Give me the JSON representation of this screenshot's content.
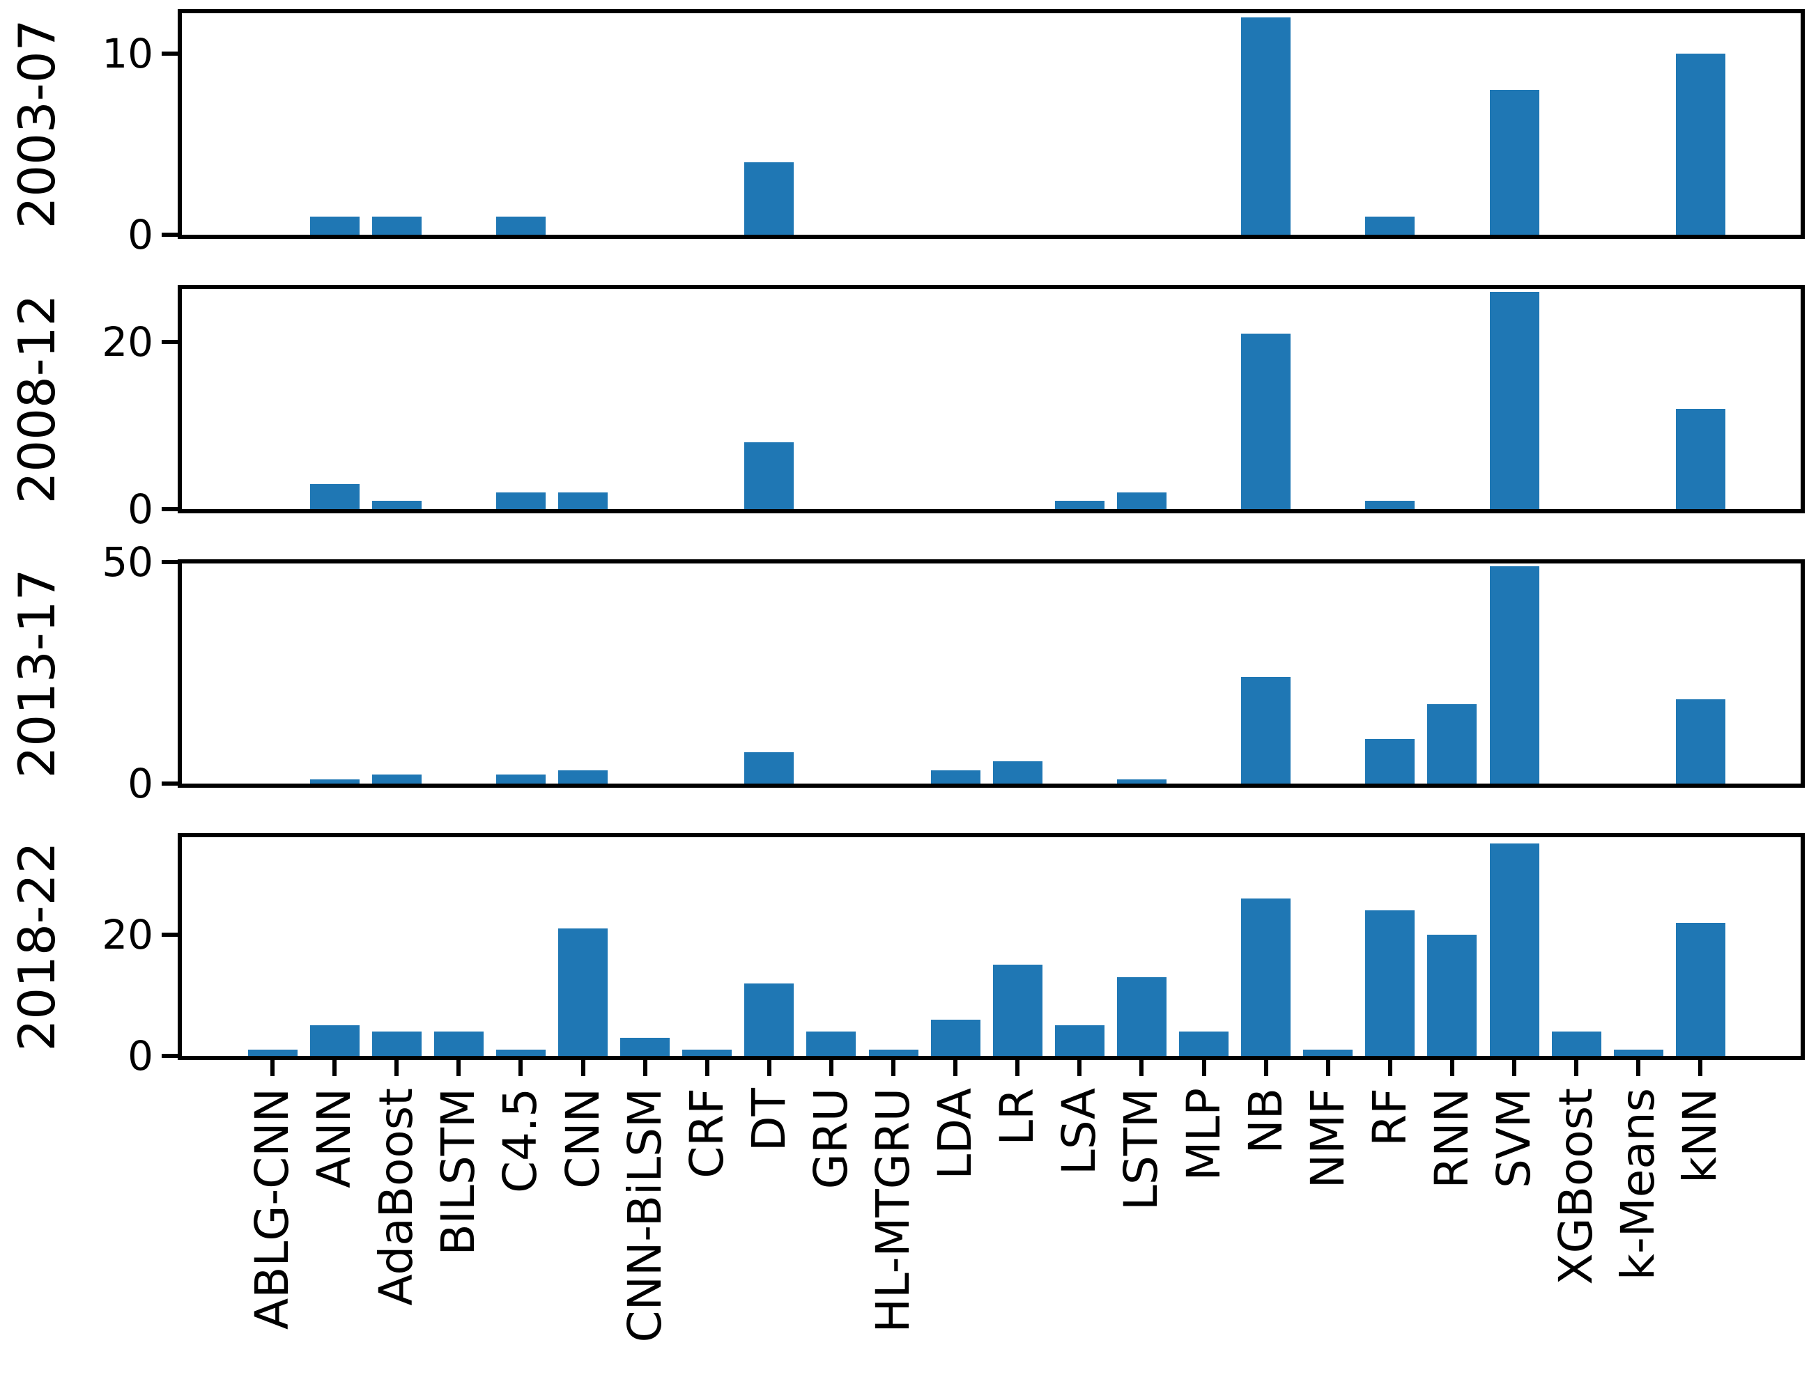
{
  "chart_data": {
    "type": "bar",
    "title": "",
    "xlabel": "",
    "grid": false,
    "legend": "none",
    "background": "#ffffff",
    "bar_color": "#1f77b4",
    "axis_color": "#000000",
    "categories": [
      "ABLG-CNN",
      "ANN",
      "AdaBoost",
      "BILSTM",
      "C4.5",
      "CNN",
      "CNN-BiLSM",
      "CRF",
      "DT",
      "GRU",
      "HL-MTGRU",
      "LDA",
      "LR",
      "LSA",
      "LSTM",
      "MLP",
      "NB",
      "NMF",
      "RF",
      "RNN",
      "SVM",
      "XGBoost",
      "k-Means",
      "kNN"
    ],
    "series": [
      {
        "name": "2003-07",
        "ylim": [
          0,
          12.6
        ],
        "yticks": [
          0,
          10
        ],
        "values": [
          0,
          1,
          1,
          0,
          1,
          0,
          0,
          0,
          4,
          0,
          0,
          0,
          0,
          0,
          0,
          0,
          12,
          0,
          1,
          0,
          8,
          0,
          0,
          10
        ]
      },
      {
        "name": "2008-12",
        "ylim": [
          0,
          27.3
        ],
        "yticks": [
          0,
          20
        ],
        "values": [
          0,
          3,
          1,
          0,
          2,
          2,
          0,
          0,
          8,
          0,
          0,
          0,
          0,
          1,
          2,
          0,
          21,
          0,
          1,
          0,
          26,
          0,
          0,
          12
        ]
      },
      {
        "name": "2013-17",
        "ylim": [
          0,
          51.5
        ],
        "yticks": [
          0,
          50
        ],
        "values": [
          0,
          1,
          2,
          0,
          2,
          3,
          0,
          0,
          7,
          0,
          0,
          3,
          5,
          0,
          1,
          0,
          24,
          0,
          10,
          18,
          49,
          0,
          0,
          19
        ]
      },
      {
        "name": "2018-22",
        "ylim": [
          0,
          37.5
        ],
        "yticks": [
          0,
          20
        ],
        "values": [
          1,
          5,
          4,
          4,
          1,
          21,
          3,
          1,
          12,
          4,
          1,
          6,
          15,
          5,
          13,
          4,
          26,
          1,
          24,
          20,
          35,
          4,
          1,
          22
        ]
      }
    ]
  }
}
